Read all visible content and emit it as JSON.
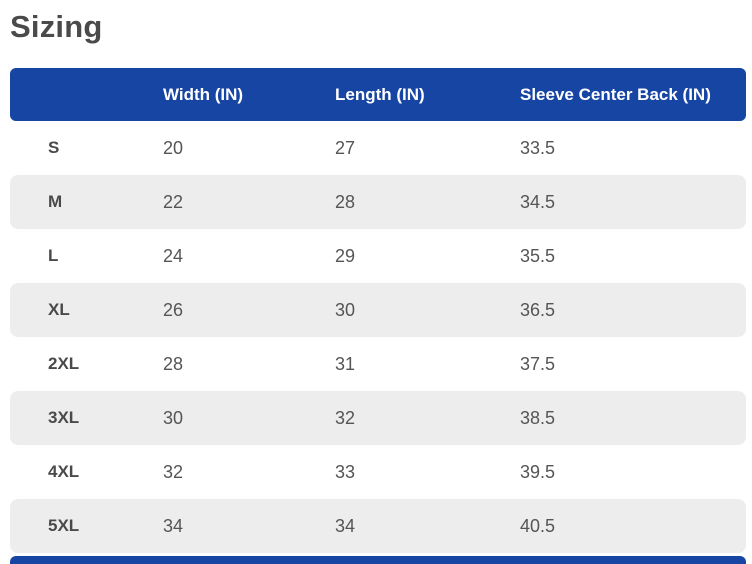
{
  "page": {
    "title": "Sizing"
  },
  "colors": {
    "header_bg": "#1745a3",
    "header_text": "#ffffff",
    "stripe_row_bg": "#ededed",
    "title_text": "#4a4a4a",
    "body_text": "#555555"
  },
  "table": {
    "columns": [
      "",
      "Width (IN)",
      "Length (IN)",
      "Sleeve Center Back (IN)"
    ],
    "rows": [
      {
        "size": "S",
        "width": "20",
        "length": "27",
        "sleeve": "33.5"
      },
      {
        "size": "M",
        "width": "22",
        "length": "28",
        "sleeve": "34.5"
      },
      {
        "size": "L",
        "width": "24",
        "length": "29",
        "sleeve": "35.5"
      },
      {
        "size": "XL",
        "width": "26",
        "length": "30",
        "sleeve": "36.5"
      },
      {
        "size": "2XL",
        "width": "28",
        "length": "31",
        "sleeve": "37.5"
      },
      {
        "size": "3XL",
        "width": "30",
        "length": "32",
        "sleeve": "38.5"
      },
      {
        "size": "4XL",
        "width": "32",
        "length": "33",
        "sleeve": "39.5"
      },
      {
        "size": "5XL",
        "width": "34",
        "length": "34",
        "sleeve": "40.5"
      }
    ]
  }
}
